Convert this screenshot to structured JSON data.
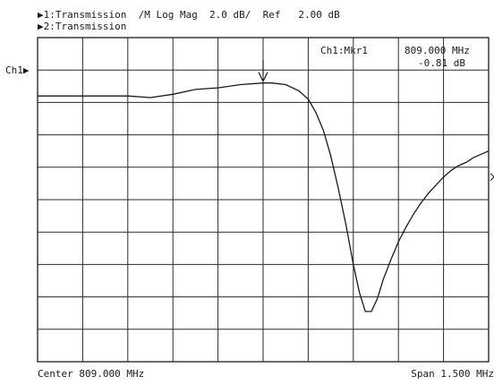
{
  "header": {
    "line1": "▶1:Transmission  /M Log Mag  2.0 dB/  Ref   2.00 dB",
    "line2": "▶2:Transmission"
  },
  "footer": {
    "center_label": "Center 809.000 MHz",
    "span_label": "Span 1.500 MHz"
  },
  "channel_label": "Ch1▶",
  "marker": {
    "label": "Ch1:Mkr1",
    "freq": "809.000 MHz",
    "value": "-0.81 dB"
  },
  "colors": {
    "trace": "#1a1a1a",
    "grid": "#2a2a2a",
    "background": "#ffffff"
  },
  "chart_data": {
    "type": "line",
    "xlim": [
      808.25,
      809.75
    ],
    "ylim": [
      -18,
      2
    ],
    "x_unit": "MHz",
    "y_unit": "dB",
    "x_divisions": 10,
    "y_divisions": 10,
    "reference_level_db": 2.0,
    "scale_db_per_div": 2.0,
    "grid": true,
    "series": [
      {
        "x": [
          808.25,
          808.325,
          808.4,
          808.475,
          808.55,
          808.625,
          808.7,
          808.775,
          808.85,
          808.925,
          809.0,
          809.03,
          809.075,
          809.12,
          809.15,
          809.175,
          809.2,
          809.225,
          809.25,
          809.275,
          809.3,
          809.32,
          809.34,
          809.36,
          809.38,
          809.4,
          809.425,
          809.45,
          809.475,
          809.5,
          809.525,
          809.55,
          809.575,
          809.6,
          809.625,
          809.65,
          809.675,
          809.7,
          809.75
        ],
        "y": [
          -1.6,
          -1.6,
          -1.6,
          -1.6,
          -1.6,
          -1.7,
          -1.5,
          -1.2,
          -1.1,
          -0.9,
          -0.8,
          -0.8,
          -0.9,
          -1.3,
          -1.8,
          -2.6,
          -3.7,
          -5.3,
          -7.3,
          -9.5,
          -12.0,
          -13.7,
          -14.9,
          -14.9,
          -14.1,
          -12.9,
          -11.7,
          -10.6,
          -9.7,
          -8.9,
          -8.2,
          -7.6,
          -7.1,
          -6.6,
          -6.2,
          -5.9,
          -5.7,
          -5.4,
          -5.0
        ]
      }
    ]
  }
}
